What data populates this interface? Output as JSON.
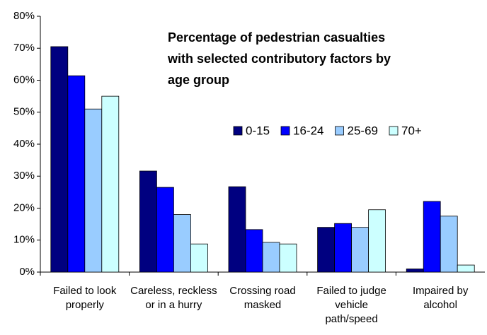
{
  "chart_data": {
    "type": "bar",
    "title": "Percentage of pedestrian casualties with selected contributory factors by age group",
    "categories": [
      "Failed to look properly",
      "Careless, reckless or in a hurry",
      "Crossing road masked",
      "Failed to judge vehicle path/speed",
      "Impaired by alcohol"
    ],
    "series": [
      {
        "name": "0-15",
        "color": "#000080",
        "values": [
          70.5,
          31.6,
          26.7,
          14,
          1
        ]
      },
      {
        "name": "16-24",
        "color": "#0000ff",
        "values": [
          61.4,
          26.5,
          13.3,
          15.2,
          22.1
        ]
      },
      {
        "name": "25-69",
        "color": "#99ccff",
        "values": [
          51,
          18,
          9.3,
          14,
          17.5
        ]
      },
      {
        "name": "70+",
        "color": "#ccffff",
        "values": [
          55,
          8.8,
          8.8,
          19.5,
          2.2
        ]
      }
    ],
    "ylim": [
      0,
      80
    ],
    "yticks": [
      {
        "value": 0,
        "label": "0%"
      },
      {
        "value": 10,
        "label": "10%"
      },
      {
        "value": 20,
        "label": "20%"
      },
      {
        "value": 30,
        "label": "30%"
      },
      {
        "value": 40,
        "label": "40%"
      },
      {
        "value": 50,
        "label": "50%"
      },
      {
        "value": 60,
        "label": "60%"
      },
      {
        "value": 70,
        "label": "70%"
      },
      {
        "value": 80,
        "label": "80%"
      }
    ],
    "grid": false
  }
}
